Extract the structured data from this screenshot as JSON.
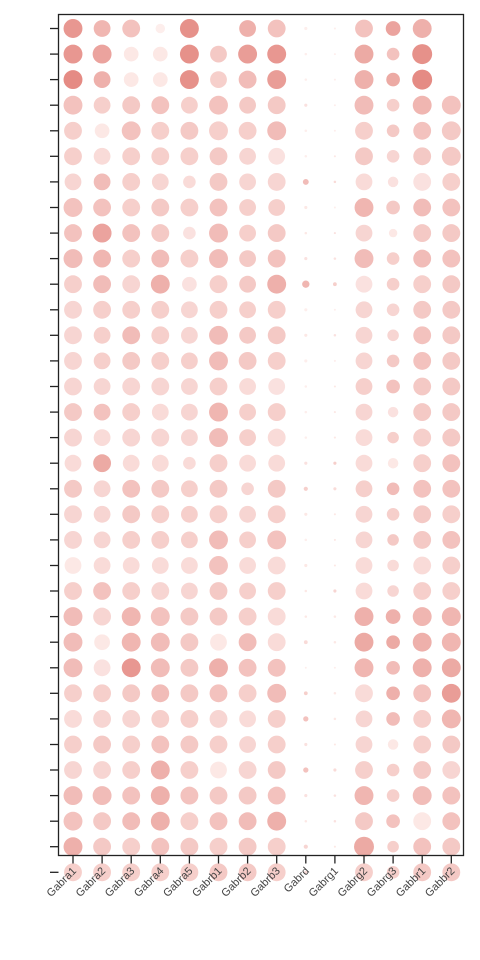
{
  "chart_data": {
    "type": "dotplot",
    "categories": [
      "Gabra1",
      "Gabra2",
      "Gabra3",
      "Gabra4",
      "Gabra5",
      "Gabrb1",
      "Gabrb2",
      "Gabrb3",
      "Gabrd",
      "Gabrg1",
      "Gabrg2",
      "Gabrg3",
      "Gabbr1",
      "Gabbr2"
    ],
    "ylabels": [],
    "encoding": {
      "size": "dot radius 0-1",
      "color": "dot intensity 0-1 (light pink to salmon red)"
    },
    "color_low": "#fff4f2",
    "color_high": "#e07870",
    "grid": false,
    "legend": "none",
    "rows": [
      {
        "size": [
          0.9,
          0.8,
          0.85,
          0.45,
          0.9,
          0.0,
          0.8,
          0.85,
          0.15,
          0.1,
          0.85,
          0.7,
          0.9,
          0.0
        ],
        "color": [
          0.75,
          0.5,
          0.4,
          0.05,
          0.8,
          0.0,
          0.55,
          0.4,
          0.05,
          0.05,
          0.4,
          0.65,
          0.55,
          0.0
        ]
      },
      {
        "size": [
          0.9,
          0.9,
          0.7,
          0.7,
          0.9,
          0.8,
          0.9,
          0.9,
          0.12,
          0.08,
          0.9,
          0.6,
          0.95,
          0.0
        ],
        "color": [
          0.75,
          0.65,
          0.1,
          0.1,
          0.8,
          0.35,
          0.7,
          0.75,
          0.05,
          0.05,
          0.6,
          0.4,
          0.8,
          0.0
        ]
      },
      {
        "size": [
          0.9,
          0.8,
          0.7,
          0.7,
          0.9,
          0.8,
          0.85,
          0.9,
          0.12,
          0.08,
          0.9,
          0.65,
          0.95,
          0.0
        ],
        "color": [
          0.85,
          0.55,
          0.1,
          0.1,
          0.8,
          0.3,
          0.45,
          0.7,
          0.05,
          0.05,
          0.55,
          0.6,
          0.85,
          0.0
        ]
      },
      {
        "size": [
          0.9,
          0.8,
          0.85,
          0.85,
          0.8,
          0.9,
          0.8,
          0.85,
          0.15,
          0.08,
          0.9,
          0.6,
          0.9,
          0.9
        ],
        "color": [
          0.4,
          0.3,
          0.35,
          0.4,
          0.3,
          0.4,
          0.35,
          0.35,
          0.15,
          0.05,
          0.45,
          0.3,
          0.5,
          0.4
        ]
      },
      {
        "size": [
          0.85,
          0.7,
          0.9,
          0.85,
          0.85,
          0.9,
          0.85,
          0.9,
          0.12,
          0.08,
          0.85,
          0.6,
          0.85,
          0.9
        ],
        "color": [
          0.3,
          0.1,
          0.4,
          0.3,
          0.35,
          0.3,
          0.3,
          0.45,
          0.05,
          0.05,
          0.3,
          0.35,
          0.4,
          0.35
        ]
      },
      {
        "size": [
          0.85,
          0.8,
          0.85,
          0.85,
          0.85,
          0.85,
          0.8,
          0.8,
          0.12,
          0.1,
          0.85,
          0.6,
          0.85,
          0.9
        ],
        "color": [
          0.3,
          0.2,
          0.3,
          0.3,
          0.3,
          0.35,
          0.25,
          0.15,
          0.05,
          0.1,
          0.35,
          0.25,
          0.35,
          0.35
        ]
      },
      {
        "size": [
          0.8,
          0.8,
          0.85,
          0.8,
          0.6,
          0.85,
          0.8,
          0.85,
          0.28,
          0.12,
          0.8,
          0.5,
          0.85,
          0.85
        ],
        "color": [
          0.25,
          0.45,
          0.3,
          0.25,
          0.2,
          0.35,
          0.25,
          0.25,
          0.45,
          0.2,
          0.2,
          0.15,
          0.15,
          0.3
        ]
      },
      {
        "size": [
          0.9,
          0.85,
          0.85,
          0.85,
          0.85,
          0.85,
          0.8,
          0.8,
          0.15,
          0.08,
          0.9,
          0.65,
          0.85,
          0.85
        ],
        "color": [
          0.4,
          0.4,
          0.3,
          0.35,
          0.3,
          0.4,
          0.3,
          0.3,
          0.1,
          0.05,
          0.5,
          0.35,
          0.45,
          0.4
        ]
      },
      {
        "size": [
          0.85,
          0.9,
          0.85,
          0.85,
          0.6,
          0.9,
          0.8,
          0.85,
          0.12,
          0.1,
          0.8,
          0.4,
          0.85,
          0.85
        ],
        "color": [
          0.4,
          0.65,
          0.4,
          0.35,
          0.15,
          0.45,
          0.3,
          0.35,
          0.1,
          0.15,
          0.25,
          0.1,
          0.35,
          0.35
        ]
      },
      {
        "size": [
          0.9,
          0.85,
          0.85,
          0.85,
          0.85,
          0.9,
          0.8,
          0.85,
          0.15,
          0.12,
          0.9,
          0.6,
          0.85,
          0.85
        ],
        "color": [
          0.45,
          0.5,
          0.3,
          0.45,
          0.3,
          0.45,
          0.35,
          0.4,
          0.15,
          0.15,
          0.45,
          0.3,
          0.45,
          0.4
        ]
      },
      {
        "size": [
          0.85,
          0.85,
          0.85,
          0.9,
          0.7,
          0.85,
          0.8,
          0.9,
          0.35,
          0.18,
          0.8,
          0.6,
          0.85,
          0.85
        ],
        "color": [
          0.3,
          0.45,
          0.25,
          0.55,
          0.15,
          0.3,
          0.35,
          0.55,
          0.5,
          0.3,
          0.15,
          0.3,
          0.3,
          0.35
        ]
      },
      {
        "size": [
          0.85,
          0.85,
          0.85,
          0.85,
          0.8,
          0.85,
          0.8,
          0.85,
          0.15,
          0.08,
          0.8,
          0.6,
          0.85,
          0.85
        ],
        "color": [
          0.25,
          0.3,
          0.3,
          0.3,
          0.25,
          0.3,
          0.3,
          0.3,
          0.05,
          0.05,
          0.25,
          0.25,
          0.35,
          0.35
        ]
      },
      {
        "size": [
          0.85,
          0.8,
          0.85,
          0.85,
          0.8,
          0.9,
          0.8,
          0.85,
          0.15,
          0.12,
          0.8,
          0.55,
          0.85,
          0.85
        ],
        "color": [
          0.25,
          0.3,
          0.45,
          0.3,
          0.25,
          0.45,
          0.35,
          0.35,
          0.1,
          0.15,
          0.25,
          0.25,
          0.4,
          0.35
        ]
      },
      {
        "size": [
          0.85,
          0.8,
          0.85,
          0.85,
          0.8,
          0.9,
          0.85,
          0.85,
          0.15,
          0.1,
          0.8,
          0.6,
          0.85,
          0.85
        ],
        "color": [
          0.25,
          0.3,
          0.35,
          0.3,
          0.3,
          0.45,
          0.35,
          0.3,
          0.05,
          0.05,
          0.25,
          0.35,
          0.4,
          0.35
        ]
      },
      {
        "size": [
          0.85,
          0.8,
          0.85,
          0.85,
          0.8,
          0.85,
          0.8,
          0.8,
          0.12,
          0.1,
          0.8,
          0.65,
          0.85,
          0.85
        ],
        "color": [
          0.25,
          0.25,
          0.25,
          0.25,
          0.25,
          0.3,
          0.2,
          0.15,
          0.05,
          0.1,
          0.3,
          0.4,
          0.35,
          0.35
        ]
      },
      {
        "size": [
          0.85,
          0.8,
          0.85,
          0.8,
          0.8,
          0.9,
          0.8,
          0.85,
          0.12,
          0.1,
          0.8,
          0.5,
          0.85,
          0.85
        ],
        "color": [
          0.35,
          0.4,
          0.3,
          0.2,
          0.25,
          0.5,
          0.3,
          0.3,
          0.05,
          0.1,
          0.25,
          0.15,
          0.35,
          0.35
        ]
      },
      {
        "size": [
          0.85,
          0.8,
          0.85,
          0.85,
          0.8,
          0.9,
          0.8,
          0.85,
          0.12,
          0.1,
          0.8,
          0.55,
          0.85,
          0.85
        ],
        "color": [
          0.25,
          0.2,
          0.25,
          0.25,
          0.25,
          0.45,
          0.3,
          0.2,
          0.05,
          0.1,
          0.2,
          0.3,
          0.3,
          0.35
        ]
      },
      {
        "size": [
          0.8,
          0.85,
          0.8,
          0.8,
          0.6,
          0.85,
          0.8,
          0.8,
          0.15,
          0.15,
          0.8,
          0.5,
          0.85,
          0.85
        ],
        "color": [
          0.2,
          0.6,
          0.2,
          0.2,
          0.2,
          0.3,
          0.2,
          0.2,
          0.15,
          0.3,
          0.2,
          0.1,
          0.3,
          0.4
        ]
      },
      {
        "size": [
          0.85,
          0.8,
          0.85,
          0.85,
          0.8,
          0.85,
          0.6,
          0.85,
          0.2,
          0.15,
          0.8,
          0.6,
          0.85,
          0.85
        ],
        "color": [
          0.35,
          0.25,
          0.4,
          0.35,
          0.3,
          0.35,
          0.25,
          0.35,
          0.3,
          0.2,
          0.3,
          0.45,
          0.4,
          0.4
        ]
      },
      {
        "size": [
          0.85,
          0.8,
          0.85,
          0.85,
          0.8,
          0.85,
          0.8,
          0.85,
          0.15,
          0.1,
          0.8,
          0.6,
          0.85,
          0.85
        ],
        "color": [
          0.25,
          0.25,
          0.35,
          0.3,
          0.3,
          0.3,
          0.25,
          0.3,
          0.1,
          0.1,
          0.25,
          0.3,
          0.35,
          0.3
        ]
      },
      {
        "size": [
          0.85,
          0.8,
          0.85,
          0.85,
          0.8,
          0.9,
          0.8,
          0.9,
          0.12,
          0.1,
          0.8,
          0.55,
          0.85,
          0.85
        ],
        "color": [
          0.25,
          0.25,
          0.3,
          0.3,
          0.3,
          0.45,
          0.3,
          0.4,
          0.05,
          0.1,
          0.25,
          0.35,
          0.35,
          0.4
        ]
      },
      {
        "size": [
          0.8,
          0.8,
          0.8,
          0.8,
          0.8,
          0.9,
          0.8,
          0.85,
          0.15,
          0.1,
          0.8,
          0.55,
          0.85,
          0.85
        ],
        "color": [
          0.1,
          0.2,
          0.2,
          0.2,
          0.2,
          0.4,
          0.2,
          0.2,
          0.1,
          0.1,
          0.2,
          0.2,
          0.2,
          0.3
        ]
      },
      {
        "size": [
          0.85,
          0.85,
          0.85,
          0.85,
          0.8,
          0.85,
          0.8,
          0.85,
          0.12,
          0.15,
          0.8,
          0.55,
          0.85,
          0.85
        ],
        "color": [
          0.3,
          0.4,
          0.3,
          0.25,
          0.25,
          0.35,
          0.3,
          0.3,
          0.1,
          0.25,
          0.2,
          0.25,
          0.3,
          0.3
        ]
      },
      {
        "size": [
          0.9,
          0.85,
          0.9,
          0.9,
          0.85,
          0.85,
          0.85,
          0.85,
          0.12,
          0.12,
          0.9,
          0.7,
          0.9,
          0.9
        ],
        "color": [
          0.45,
          0.25,
          0.5,
          0.4,
          0.35,
          0.35,
          0.3,
          0.2,
          0.1,
          0.1,
          0.55,
          0.55,
          0.5,
          0.5
        ]
      },
      {
        "size": [
          0.9,
          0.75,
          0.9,
          0.9,
          0.85,
          0.8,
          0.85,
          0.85,
          0.18,
          0.12,
          0.9,
          0.65,
          0.9,
          0.9
        ],
        "color": [
          0.45,
          0.1,
          0.5,
          0.45,
          0.35,
          0.1,
          0.45,
          0.2,
          0.2,
          0.1,
          0.6,
          0.6,
          0.55,
          0.5
        ]
      },
      {
        "size": [
          0.9,
          0.8,
          0.9,
          0.9,
          0.85,
          0.9,
          0.85,
          0.85,
          0.08,
          0.08,
          0.9,
          0.65,
          0.9,
          0.9
        ],
        "color": [
          0.45,
          0.15,
          0.75,
          0.45,
          0.35,
          0.55,
          0.4,
          0.4,
          0.05,
          0.05,
          0.5,
          0.45,
          0.55,
          0.6
        ]
      },
      {
        "size": [
          0.85,
          0.85,
          0.85,
          0.85,
          0.85,
          0.85,
          0.85,
          0.9,
          0.18,
          0.12,
          0.85,
          0.65,
          0.85,
          0.9
        ],
        "color": [
          0.3,
          0.3,
          0.35,
          0.45,
          0.35,
          0.4,
          0.3,
          0.45,
          0.3,
          0.1,
          0.2,
          0.55,
          0.4,
          0.7
        ]
      },
      {
        "size": [
          0.85,
          0.85,
          0.85,
          0.85,
          0.85,
          0.85,
          0.8,
          0.85,
          0.25,
          0.12,
          0.8,
          0.65,
          0.85,
          0.9
        ],
        "color": [
          0.2,
          0.25,
          0.25,
          0.3,
          0.3,
          0.25,
          0.2,
          0.3,
          0.4,
          0.1,
          0.25,
          0.45,
          0.3,
          0.5
        ]
      },
      {
        "size": [
          0.85,
          0.85,
          0.85,
          0.85,
          0.85,
          0.85,
          0.8,
          0.85,
          0.15,
          0.1,
          0.8,
          0.5,
          0.85,
          0.85
        ],
        "color": [
          0.3,
          0.35,
          0.3,
          0.4,
          0.35,
          0.3,
          0.25,
          0.3,
          0.15,
          0.1,
          0.25,
          0.1,
          0.3,
          0.35
        ]
      },
      {
        "size": [
          0.85,
          0.85,
          0.85,
          0.9,
          0.85,
          0.8,
          0.85,
          0.85,
          0.25,
          0.15,
          0.85,
          0.6,
          0.85,
          0.85
        ],
        "color": [
          0.25,
          0.25,
          0.3,
          0.55,
          0.3,
          0.1,
          0.25,
          0.35,
          0.4,
          0.2,
          0.3,
          0.3,
          0.35,
          0.25
        ]
      },
      {
        "size": [
          0.9,
          0.9,
          0.85,
          0.9,
          0.85,
          0.85,
          0.85,
          0.85,
          0.15,
          0.12,
          0.9,
          0.6,
          0.9,
          0.85
        ],
        "color": [
          0.45,
          0.45,
          0.4,
          0.55,
          0.4,
          0.35,
          0.35,
          0.4,
          0.15,
          0.15,
          0.5,
          0.3,
          0.45,
          0.4
        ]
      },
      {
        "size": [
          0.9,
          0.85,
          0.85,
          0.9,
          0.85,
          0.85,
          0.85,
          0.9,
          0.12,
          0.12,
          0.85,
          0.65,
          0.85,
          0.85
        ],
        "color": [
          0.4,
          0.35,
          0.45,
          0.55,
          0.3,
          0.4,
          0.45,
          0.55,
          0.1,
          0.15,
          0.35,
          0.4,
          0.1,
          0.4
        ]
      },
      {
        "size": [
          0.9,
          0.85,
          0.85,
          0.85,
          0.85,
          0.85,
          0.85,
          0.85,
          0.2,
          0.1,
          0.95,
          0.55,
          0.85,
          0.85
        ],
        "color": [
          0.55,
          0.35,
          0.3,
          0.4,
          0.35,
          0.3,
          0.35,
          0.3,
          0.25,
          0.1,
          0.6,
          0.3,
          0.4,
          0.35
        ]
      },
      {
        "size": [
          0.85,
          0.85,
          0.85,
          0.85,
          0.85,
          0.85,
          0.85,
          0.85,
          0.15,
          0.1,
          0.85,
          0.6,
          0.85,
          0.85
        ],
        "color": [
          0.3,
          0.3,
          0.3,
          0.3,
          0.3,
          0.35,
          0.35,
          0.3,
          0.2,
          0.1,
          0.3,
          0.3,
          0.35,
          0.35
        ]
      }
    ]
  }
}
